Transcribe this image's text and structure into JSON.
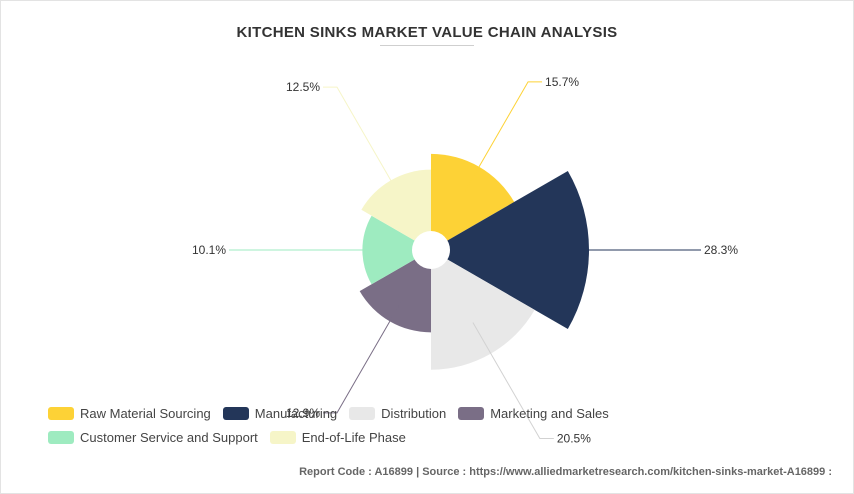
{
  "chart_data": {
    "type": "pie",
    "title": "KITCHEN SINKS MARKET VALUE CHAIN ANALYSIS",
    "series": [
      {
        "name": "Raw Material Sourcing",
        "value": 15.7,
        "label": "15.7%",
        "color": "#FDD236"
      },
      {
        "name": "Manufacturing",
        "value": 28.3,
        "label": "28.3%",
        "color": "#233659"
      },
      {
        "name": "Distribution",
        "value": 20.5,
        "label": "20.5%",
        "color": "#E8E8E8"
      },
      {
        "name": "Marketing and Sales",
        "value": 12.9,
        "label": "12.9%",
        "color": "#7A6E86"
      },
      {
        "name": "Customer Service and Support",
        "value": 10.1,
        "label": "10.1%",
        "color": "#9EEBC0"
      },
      {
        "name": "End-of-Life Phase",
        "value": 12.5,
        "label": "12.5%",
        "color": "#F6F5C8"
      }
    ],
    "legend_position": "bottom"
  },
  "footer": {
    "text": "Report Code : A16899  |  Source : https://www.alliedmarketresearch.com/kitchen-sinks-market-A16899 :"
  }
}
